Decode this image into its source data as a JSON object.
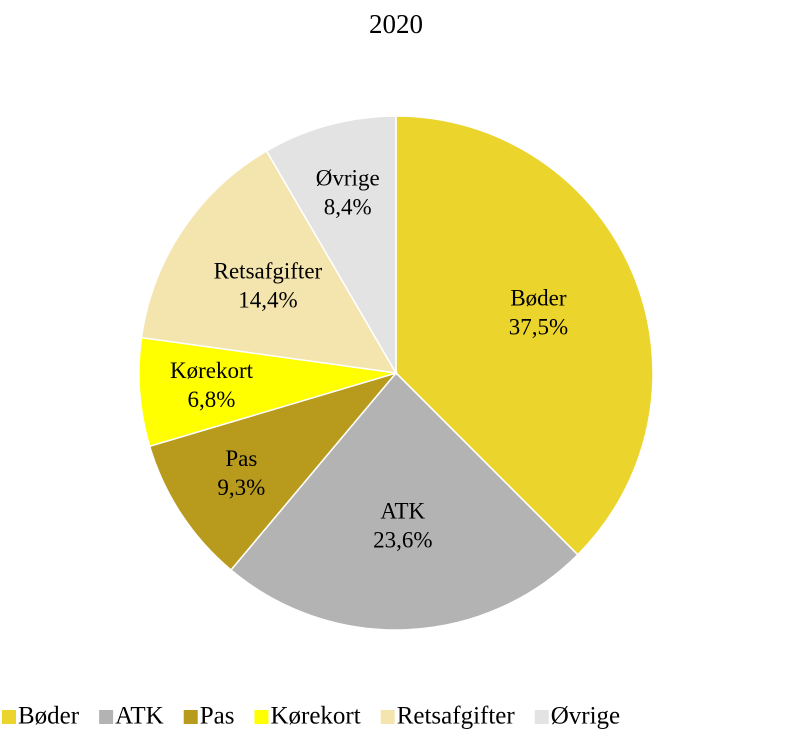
{
  "chart_data": {
    "type": "pie",
    "title": "2020",
    "categories": [
      "Bøder",
      "ATK",
      "Pas",
      "Kørekort",
      "Retsafgifter",
      "Øvrige"
    ],
    "values": [
      37.5,
      23.6,
      9.3,
      6.8,
      14.4,
      8.4
    ],
    "value_labels": [
      "37,5%",
      "23,6%",
      "9,3%",
      "6,8%",
      "14,4%",
      "8,4%"
    ],
    "colors": [
      "#EBD42C",
      "#B3B3B3",
      "#B89A1D",
      "#FFFF00",
      "#F4E5AE",
      "#E3E3E3"
    ],
    "legend": "bottom"
  }
}
